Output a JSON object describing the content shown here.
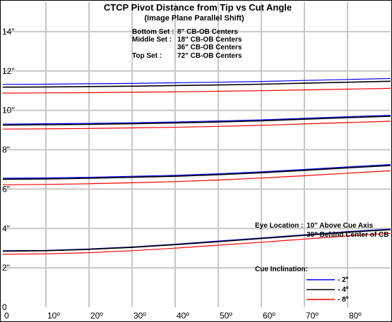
{
  "chart_data": {
    "type": "line",
    "title": "CTCP Pivot Distance from Tip vs Cut Angle",
    "subtitle": "(Image Plane Parallel Shift)",
    "xlabel": "",
    "ylabel": "",
    "xlim": [
      0,
      90
    ],
    "ylim": [
      0,
      15.5
    ],
    "grid": true,
    "x_ticks": [
      {
        "value": 0,
        "label": "0"
      },
      {
        "value": 10,
        "label": "10º"
      },
      {
        "value": 20,
        "label": "20º"
      },
      {
        "value": 30,
        "label": "30º"
      },
      {
        "value": 40,
        "label": "40º"
      },
      {
        "value": 50,
        "label": "50º"
      },
      {
        "value": 60,
        "label": "60º"
      },
      {
        "value": 70,
        "label": "70º"
      },
      {
        "value": 80,
        "label": "80º"
      }
    ],
    "y_ticks": [
      {
        "value": 0,
        "label": "0"
      },
      {
        "value": 2,
        "label": "2\""
      },
      {
        "value": 4,
        "label": "4\""
      },
      {
        "value": 6,
        "label": "6\""
      },
      {
        "value": 8,
        "label": "8\""
      },
      {
        "value": 10,
        "label": "10\""
      },
      {
        "value": 12,
        "label": "12\""
      },
      {
        "value": 14,
        "label": "14\""
      }
    ],
    "sets_info": [
      {
        "label": "Bottom Set :",
        "value": "8\" CB-OB Centers"
      },
      {
        "label": "Middle Set :",
        "value": "18\" CB-OB Centers"
      },
      {
        "label": "",
        "value": "36\" CB-OB Centers"
      },
      {
        "label": "Top Set :",
        "value": "72\" CB-OB Centers"
      }
    ],
    "eye_location": {
      "label": "Eye Location :",
      "lines": [
        "10\" Above Cue Axis",
        "30\" Behind Center of CB"
      ]
    },
    "legend": {
      "title": "Cue Inclination:",
      "placement": "bottom-right",
      "entries": [
        {
          "name": "- 2º",
          "color": "#0000ff"
        },
        {
          "name": "- 4º",
          "color": "#000000"
        },
        {
          "name": "- 8º",
          "color": "#ff0000"
        }
      ]
    },
    "x": [
      0,
      10,
      20,
      30,
      40,
      50,
      60,
      70,
      80,
      90
    ],
    "groups": [
      {
        "series": [
          {
            "color": "#0000ff",
            "values": [
              2.87,
              2.89,
              2.96,
              3.06,
              3.2,
              3.36,
              3.52,
              3.68,
              3.84,
              3.97
            ]
          },
          {
            "color": "#000000",
            "values": [
              2.85,
              2.87,
              2.94,
              3.04,
              3.18,
              3.33,
              3.49,
              3.65,
              3.81,
              3.94
            ]
          },
          {
            "color": "#ff0000",
            "values": [
              2.69,
              2.71,
              2.77,
              2.87,
              3.0,
              3.15,
              3.3,
              3.46,
              3.62,
              3.75
            ]
          }
        ]
      },
      {
        "series": [
          {
            "color": "#0000ff",
            "values": [
              6.55,
              6.57,
              6.6,
              6.65,
              6.7,
              6.78,
              6.88,
              7.0,
              7.13,
              7.25
            ]
          },
          {
            "color": "#000000",
            "values": [
              6.5,
              6.52,
              6.55,
              6.6,
              6.65,
              6.73,
              6.83,
              6.95,
              7.08,
              7.2
            ]
          },
          {
            "color": "#ff0000",
            "values": [
              6.22,
              6.24,
              6.27,
              6.32,
              6.38,
              6.46,
              6.56,
              6.68,
              6.81,
              6.93
            ]
          }
        ]
      },
      {
        "series": [
          {
            "color": "#0000ff",
            "values": [
              9.3,
              9.32,
              9.34,
              9.37,
              9.41,
              9.46,
              9.52,
              9.6,
              9.68,
              9.75
            ]
          },
          {
            "color": "#000000",
            "values": [
              9.25,
              9.27,
              9.29,
              9.32,
              9.36,
              9.41,
              9.47,
              9.55,
              9.63,
              9.7
            ]
          },
          {
            "color": "#ff0000",
            "values": [
              9.05,
              9.06,
              9.08,
              9.11,
              9.14,
              9.19,
              9.24,
              9.31,
              9.38,
              9.45
            ]
          }
        ]
      },
      {
        "series": [
          {
            "color": "#0000ff",
            "values": [
              11.32,
              11.33,
              11.35,
              11.37,
              11.4,
              11.43,
              11.47,
              11.52,
              11.57,
              11.62
            ]
          },
          {
            "color": "#000000",
            "values": [
              11.18,
              11.19,
              11.21,
              11.23,
              11.26,
              11.29,
              11.33,
              11.38,
              11.43,
              11.48
            ]
          },
          {
            "color": "#ff0000",
            "values": [
              10.88,
              10.89,
              10.9,
              10.92,
              10.94,
              10.97,
              11.0,
              11.04,
              11.08,
              11.12
            ]
          }
        ]
      }
    ]
  }
}
